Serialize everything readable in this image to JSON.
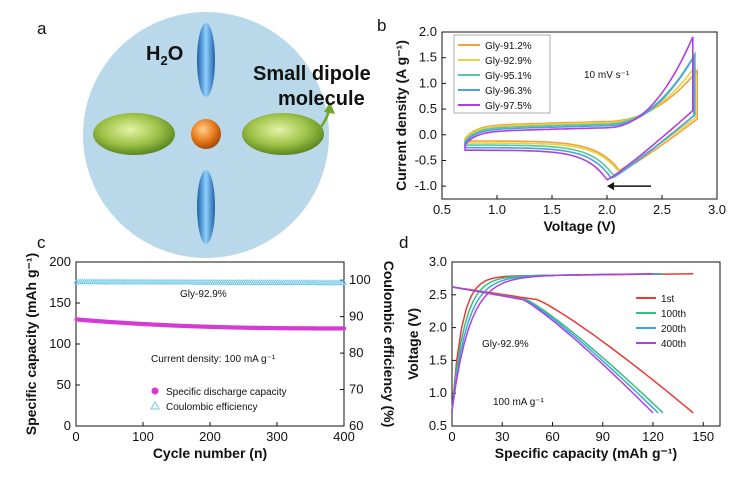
{
  "panels": {
    "a": {
      "label": "a",
      "water_label": "H",
      "water_sub": "2",
      "water_suffix": "O",
      "dipole_line1": "Small dipole",
      "dipole_line2": "molecule"
    },
    "b": {
      "label": "b"
    },
    "c": {
      "label": "c"
    },
    "d": {
      "label": "d"
    }
  },
  "chart_data": [
    {
      "panel": "b",
      "type": "line",
      "xlabel": "Voltage (V)",
      "ylabel": "Current density (A g⁻¹)",
      "xlim": [
        0.5,
        3.0
      ],
      "ylim": [
        -1.25,
        2.0
      ],
      "xticks": [
        "0.5",
        "1.0",
        "1.5",
        "2.0",
        "2.5",
        "3.0"
      ],
      "yticks": [
        "-1.0",
        "-0.5",
        "0.0",
        "0.5",
        "1.0",
        "1.5",
        "2.0"
      ],
      "annotation": "10 mV s⁻¹",
      "legend_position": "top-left",
      "series": [
        {
          "name": "Gly-91.2%",
          "color": "#f2a23a",
          "vmax": 2.82,
          "imax": 1.22,
          "peak_v": 2.12,
          "peak_i": -0.72,
          "base_low": -0.12,
          "base_high": 0.18
        },
        {
          "name": "Gly-92.9%",
          "color": "#e6d23a",
          "vmax": 2.8,
          "imax": 1.3,
          "peak_v": 2.1,
          "peak_i": -0.7,
          "base_low": -0.16,
          "base_high": 0.16
        },
        {
          "name": "Gly-95.1%",
          "color": "#58c7a2",
          "vmax": 2.8,
          "imax": 1.55,
          "peak_v": 2.06,
          "peak_i": -0.8,
          "base_low": -0.2,
          "base_high": 0.13
        },
        {
          "name": "Gly-96.3%",
          "color": "#4aa3df",
          "vmax": 2.79,
          "imax": 1.5,
          "peak_v": 2.04,
          "peak_i": -0.85,
          "base_low": -0.25,
          "base_high": 0.1
        },
        {
          "name": "Gly-97.5%",
          "color": "#b03fe0",
          "vmax": 2.78,
          "imax": 1.88,
          "peak_v": 2.0,
          "peak_i": -0.88,
          "base_low": -0.3,
          "base_high": 0.06
        }
      ]
    },
    {
      "panel": "c",
      "type": "scatter",
      "xlabel": "Cycle number (n)",
      "ylabel": "Specific capacity (mAh g⁻¹)",
      "ylabel_right": "Coulombic efficiency (%)",
      "xlim": [
        0,
        400
      ],
      "ylim": [
        0,
        200
      ],
      "ylim_right": [
        60,
        105
      ],
      "xticks": [
        "0",
        "100",
        "200",
        "300",
        "400"
      ],
      "yticks": [
        "0",
        "50",
        "100",
        "150",
        "200"
      ],
      "yticks_right": [
        "60",
        "70",
        "80",
        "90",
        "100"
      ],
      "annotation_sample": "Gly-92.9%",
      "annotation_current": "Current density: 100 mA g⁻¹",
      "legend_position": "bottom-right",
      "series": [
        {
          "name": "Specific discharge capacity",
          "axis": "left",
          "color": "#d63ad6",
          "marker": "circle",
          "start": 130,
          "end": 119
        },
        {
          "name": "Coulombic efficiency",
          "axis": "right",
          "color": "#74c9e8",
          "marker": "triangle",
          "start": 99.6,
          "end": 99.3
        }
      ]
    },
    {
      "panel": "d",
      "type": "line",
      "xlabel": "Specific capacity (mAh g⁻¹)",
      "ylabel": "Voltage (V)",
      "xlim": [
        0,
        160
      ],
      "ylim": [
        0.5,
        3.0
      ],
      "xticks": [
        "0",
        "30",
        "60",
        "90",
        "120",
        "150"
      ],
      "yticks": [
        "0.5",
        "1.0",
        "1.5",
        "2.0",
        "2.5",
        "3.0"
      ],
      "annotation_sample": "Gly-92.9%",
      "annotation_current": "100 mA g⁻¹",
      "legend_position": "top-right",
      "series": [
        {
          "name": "1st",
          "color": "#e83a3a",
          "capacity": 144
        },
        {
          "name": "100th",
          "color": "#35c07a",
          "capacity": 126
        },
        {
          "name": "200th",
          "color": "#3aa6e0",
          "capacity": 123
        },
        {
          "name": "400th",
          "color": "#b03fe0",
          "capacity": 120
        }
      ]
    }
  ]
}
